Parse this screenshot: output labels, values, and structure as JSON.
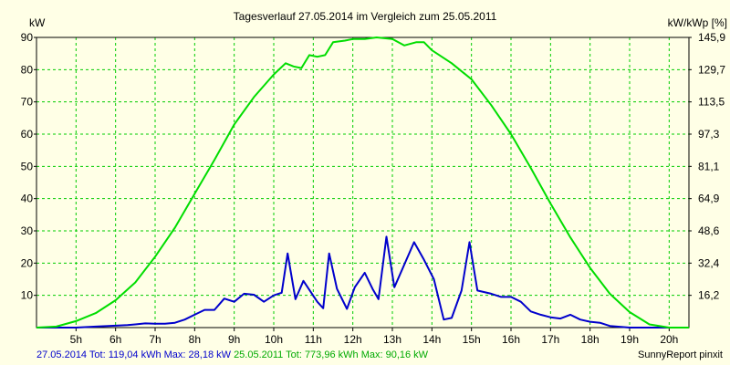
{
  "chart_data": {
    "type": "line",
    "title": "Tagesverlauf 27.05.2014 im Vergleich zum 25.05.2011",
    "left_unit": "kW",
    "right_unit": "kW/kWp [%]",
    "ylim": [
      0,
      90
    ],
    "y_ticks_left": [
      "10",
      "20",
      "30",
      "40",
      "50",
      "60",
      "70",
      "80",
      "90"
    ],
    "y_ticks_right": [
      "16,2",
      "32,4",
      "48,6",
      "64,9",
      "81,1",
      "97,3",
      "113,5",
      "129,7",
      "145,9"
    ],
    "xlim": [
      4.0,
      20.5
    ],
    "x_ticks": [
      "5h",
      "6h",
      "7h",
      "8h",
      "9h",
      "10h",
      "11h",
      "12h",
      "13h",
      "14h",
      "15h",
      "16h",
      "17h",
      "18h",
      "19h",
      "20h"
    ],
    "grid": true,
    "series": [
      {
        "name": "27.05.2014",
        "color": "#0000cc",
        "summary": "27.05.2014 Tot: 119,04 kWh Max: 28,18 kW",
        "points": [
          [
            4.0,
            0
          ],
          [
            5.0,
            0
          ],
          [
            5.5,
            0.3
          ],
          [
            6.0,
            0.6
          ],
          [
            6.3,
            0.8
          ],
          [
            6.5,
            1.0
          ],
          [
            6.75,
            1.3
          ],
          [
            7.0,
            1.2
          ],
          [
            7.25,
            1.2
          ],
          [
            7.5,
            1.5
          ],
          [
            7.75,
            2.5
          ],
          [
            8.0,
            4.0
          ],
          [
            8.25,
            5.5
          ],
          [
            8.5,
            5.5
          ],
          [
            8.75,
            9.0
          ],
          [
            9.0,
            8.0
          ],
          [
            9.25,
            10.5
          ],
          [
            9.5,
            10.2
          ],
          [
            9.75,
            8.0
          ],
          [
            10.0,
            10.0
          ],
          [
            10.2,
            10.8
          ],
          [
            10.35,
            23.0
          ],
          [
            10.55,
            8.8
          ],
          [
            10.75,
            14.5
          ],
          [
            11.1,
            8.0
          ],
          [
            11.25,
            6.0
          ],
          [
            11.4,
            23.0
          ],
          [
            11.6,
            12.0
          ],
          [
            11.85,
            5.8
          ],
          [
            12.05,
            12.5
          ],
          [
            12.3,
            17.0
          ],
          [
            12.5,
            12.0
          ],
          [
            12.65,
            8.8
          ],
          [
            12.85,
            28.2
          ],
          [
            13.05,
            12.5
          ],
          [
            13.3,
            19.5
          ],
          [
            13.55,
            26.5
          ],
          [
            13.8,
            21.0
          ],
          [
            14.05,
            15.0
          ],
          [
            14.3,
            2.5
          ],
          [
            14.5,
            3.0
          ],
          [
            14.75,
            11.5
          ],
          [
            14.95,
            26.5
          ],
          [
            15.15,
            11.5
          ],
          [
            15.5,
            10.5
          ],
          [
            15.75,
            9.5
          ],
          [
            16.0,
            9.5
          ],
          [
            16.25,
            8.0
          ],
          [
            16.5,
            5.0
          ],
          [
            16.75,
            4.0
          ],
          [
            17.0,
            3.2
          ],
          [
            17.25,
            2.8
          ],
          [
            17.5,
            4.0
          ],
          [
            17.75,
            2.5
          ],
          [
            18.0,
            1.8
          ],
          [
            18.25,
            1.5
          ],
          [
            18.5,
            0.5
          ],
          [
            19.0,
            0
          ],
          [
            20.5,
            0
          ]
        ]
      },
      {
        "name": "25.05.2011",
        "color": "#00dd00",
        "summary": "25.05.2011 Tot: 773,96 kWh Max: 90,16 kW",
        "points": [
          [
            4.0,
            0
          ],
          [
            4.5,
            0.3
          ],
          [
            5.0,
            2.0
          ],
          [
            5.5,
            4.5
          ],
          [
            6.0,
            8.5
          ],
          [
            6.5,
            14.0
          ],
          [
            7.0,
            22.0
          ],
          [
            7.5,
            31.0
          ],
          [
            8.0,
            41.5
          ],
          [
            8.5,
            52.0
          ],
          [
            9.0,
            63.0
          ],
          [
            9.5,
            71.5
          ],
          [
            10.0,
            78.5
          ],
          [
            10.3,
            82.0
          ],
          [
            10.5,
            81.0
          ],
          [
            10.7,
            80.5
          ],
          [
            10.9,
            84.5
          ],
          [
            11.1,
            84.0
          ],
          [
            11.3,
            84.5
          ],
          [
            11.5,
            88.5
          ],
          [
            11.8,
            89.0
          ],
          [
            12.0,
            89.5
          ],
          [
            12.3,
            89.5
          ],
          [
            12.6,
            90.0
          ],
          [
            13.0,
            89.5
          ],
          [
            13.3,
            87.5
          ],
          [
            13.6,
            88.5
          ],
          [
            13.8,
            88.5
          ],
          [
            14.0,
            86.0
          ],
          [
            14.5,
            82.0
          ],
          [
            15.0,
            77.0
          ],
          [
            15.5,
            69.0
          ],
          [
            16.0,
            60.0
          ],
          [
            16.5,
            49.5
          ],
          [
            17.0,
            38.5
          ],
          [
            17.5,
            28.0
          ],
          [
            18.0,
            18.5
          ],
          [
            18.5,
            10.5
          ],
          [
            19.0,
            4.8
          ],
          [
            19.5,
            1.0
          ],
          [
            20.0,
            0
          ],
          [
            20.5,
            0
          ]
        ]
      }
    ]
  },
  "footer": {
    "left_a": "27.05.2014 Tot: 119,04 kWh Max: 28,18 kW",
    "left_b": "25.05.2011 Tot: 773,96 kWh Max: 90,16 kW",
    "right": "SunnyReport pinxit"
  }
}
